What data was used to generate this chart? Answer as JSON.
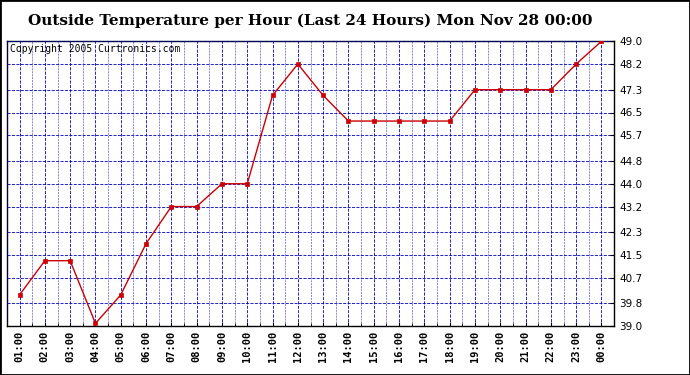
{
  "title": "Outside Temperature per Hour (Last 24 Hours) Mon Nov 28 00:00",
  "copyright": "Copyright 2005 Curtronics.com",
  "x_labels": [
    "01:00",
    "02:00",
    "03:00",
    "04:00",
    "05:00",
    "06:00",
    "07:00",
    "08:00",
    "09:00",
    "10:00",
    "11:00",
    "12:00",
    "13:00",
    "14:00",
    "15:00",
    "16:00",
    "17:00",
    "18:00",
    "19:00",
    "20:00",
    "21:00",
    "22:00",
    "23:00",
    "00:00"
  ],
  "y_values": [
    40.1,
    41.3,
    41.3,
    39.1,
    40.1,
    41.9,
    43.2,
    43.2,
    44.0,
    44.0,
    47.1,
    48.2,
    47.1,
    46.2,
    46.2,
    46.2,
    46.2,
    46.2,
    47.3,
    47.3,
    47.3,
    47.3,
    48.2,
    49.0
  ],
  "line_color": "#cc0000",
  "marker": "s",
  "marker_color": "#cc0000",
  "marker_size": 3,
  "ylim": [
    39.0,
    49.0
  ],
  "yticks": [
    39.0,
    39.8,
    40.7,
    41.5,
    42.3,
    43.2,
    44.0,
    44.8,
    45.7,
    46.5,
    47.3,
    48.2,
    49.0
  ],
  "background_color": "#ffffff",
  "plot_bg_color": "#ffffff",
  "grid_color_major": "#0000bb",
  "grid_color_minor": "#0000bb",
  "title_fontsize": 11,
  "copyright_fontsize": 7,
  "tick_fontsize": 7.5,
  "border_color": "#000000"
}
